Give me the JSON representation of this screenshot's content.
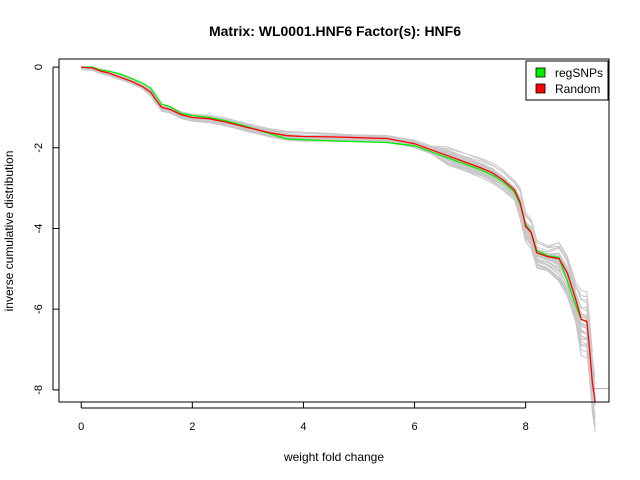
{
  "chart_data": {
    "type": "line",
    "title": "Matrix: WL0001.HNF6 Factor(s): HNF6",
    "xlabel": "weight fold change",
    "ylabel": "inverse cumulative distribution",
    "xlim": [
      -0.4,
      9.5
    ],
    "ylim": [
      -8.3,
      0.2
    ],
    "x_ticks": [
      0,
      2,
      4,
      6,
      8
    ],
    "y_ticks": [
      0,
      -2,
      -4,
      -6,
      -8
    ],
    "grid": false,
    "legend": {
      "position": "top-right",
      "entries": [
        {
          "label": "regSNPs",
          "color": "#00ee00"
        },
        {
          "label": "Random",
          "color": "#ff0000"
        }
      ]
    },
    "colors": {
      "regSNPs": "#00ee00",
      "Random": "#ff0000",
      "random_samples": "#c8c8c8",
      "random_line_thin": "#ff9999"
    },
    "series": [
      {
        "name": "regSNPs",
        "x": [
          0.0,
          0.2,
          0.35,
          0.5,
          0.7,
          0.9,
          1.1,
          1.25,
          1.35,
          1.45,
          1.6,
          1.8,
          2.0,
          2.3,
          2.6,
          3.0,
          3.4,
          3.7,
          4.0,
          4.5,
          5.0,
          5.5,
          6.0,
          6.3,
          6.6,
          6.9,
          7.2,
          7.4,
          7.6,
          7.8,
          7.9,
          8.0,
          8.1,
          8.2,
          8.4,
          8.6,
          8.75,
          8.9,
          9.0,
          9.1
        ],
        "y": [
          0.0,
          0.0,
          -0.08,
          -0.1,
          -0.17,
          -0.28,
          -0.4,
          -0.52,
          -0.72,
          -0.92,
          -0.98,
          -1.15,
          -1.2,
          -1.25,
          -1.33,
          -1.48,
          -1.65,
          -1.78,
          -1.8,
          -1.83,
          -1.85,
          -1.87,
          -1.95,
          -2.1,
          -2.25,
          -2.4,
          -2.55,
          -2.68,
          -2.85,
          -3.1,
          -3.4,
          -3.9,
          -4.1,
          -4.55,
          -4.68,
          -4.72,
          -5.3,
          -5.9,
          -6.25,
          -6.3
        ]
      },
      {
        "name": "Random",
        "x": [
          0.0,
          0.2,
          0.35,
          0.5,
          0.7,
          0.9,
          1.1,
          1.25,
          1.35,
          1.45,
          1.6,
          1.8,
          2.0,
          2.3,
          2.6,
          3.0,
          3.4,
          3.7,
          4.0,
          4.5,
          5.0,
          5.5,
          6.0,
          6.3,
          6.6,
          6.9,
          7.2,
          7.4,
          7.6,
          7.8,
          7.9,
          8.0,
          8.1,
          8.2,
          8.4,
          8.6,
          8.75,
          8.9,
          9.0,
          9.1,
          9.15,
          9.2,
          9.25
        ],
        "y": [
          0.0,
          -0.02,
          -0.1,
          -0.15,
          -0.25,
          -0.35,
          -0.48,
          -0.62,
          -0.82,
          -1.0,
          -1.05,
          -1.18,
          -1.25,
          -1.28,
          -1.36,
          -1.5,
          -1.63,
          -1.7,
          -1.72,
          -1.73,
          -1.75,
          -1.77,
          -1.9,
          -2.05,
          -2.2,
          -2.35,
          -2.5,
          -2.62,
          -2.8,
          -3.05,
          -3.35,
          -3.95,
          -4.1,
          -4.6,
          -4.7,
          -4.75,
          -5.1,
          -5.75,
          -6.25,
          -6.3,
          -7.0,
          -7.8,
          -8.3
        ]
      }
    ]
  }
}
